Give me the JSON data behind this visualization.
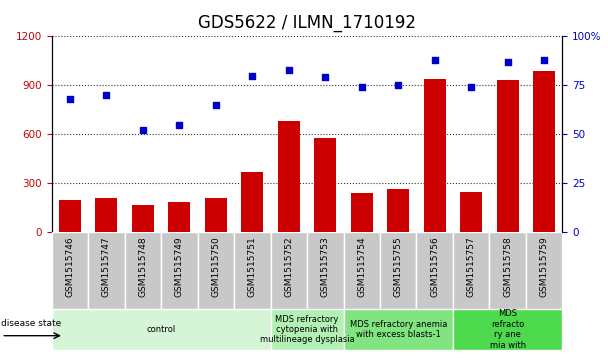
{
  "title": "GDS5622 / ILMN_1710192",
  "samples": [
    "GSM1515746",
    "GSM1515747",
    "GSM1515748",
    "GSM1515749",
    "GSM1515750",
    "GSM1515751",
    "GSM1515752",
    "GSM1515753",
    "GSM1515754",
    "GSM1515755",
    "GSM1515756",
    "GSM1515757",
    "GSM1515758",
    "GSM1515759"
  ],
  "counts": [
    200,
    210,
    170,
    185,
    210,
    370,
    680,
    575,
    240,
    265,
    940,
    245,
    935,
    985
  ],
  "percentile_ranks": [
    68,
    70,
    52,
    55,
    65,
    80,
    83,
    79,
    74,
    75,
    88,
    74,
    87,
    88
  ],
  "disease_groups": [
    {
      "label": "control",
      "start": 0,
      "end": 6,
      "color": "#d6f5d6"
    },
    {
      "label": "MDS refractory\ncytopenia with\nmultilineage dysplasia",
      "start": 6,
      "end": 8,
      "color": "#b3f0b3"
    },
    {
      "label": "MDS refractory anemia\nwith excess blasts-1",
      "start": 8,
      "end": 11,
      "color": "#80e580"
    },
    {
      "label": "MDS\nrefracto\nry ane\nmia with",
      "start": 11,
      "end": 14,
      "color": "#4ddb4d"
    }
  ],
  "bar_color": "#cc0000",
  "dot_color": "#0000cc",
  "left_ylim": [
    0,
    1200
  ],
  "right_ylim": [
    0,
    100
  ],
  "left_yticks": [
    0,
    300,
    600,
    900,
    1200
  ],
  "right_yticks": [
    0,
    25,
    50,
    75,
    100
  ],
  "right_yticklabels": [
    "0",
    "25",
    "50",
    "75",
    "100%"
  ],
  "left_color": "#cc0000",
  "right_color": "#0000cc",
  "title_fontsize": 12,
  "tick_fontsize": 7.5,
  "sample_fontsize": 6.5,
  "disease_fontsize": 6,
  "legend_fontsize": 7.5
}
